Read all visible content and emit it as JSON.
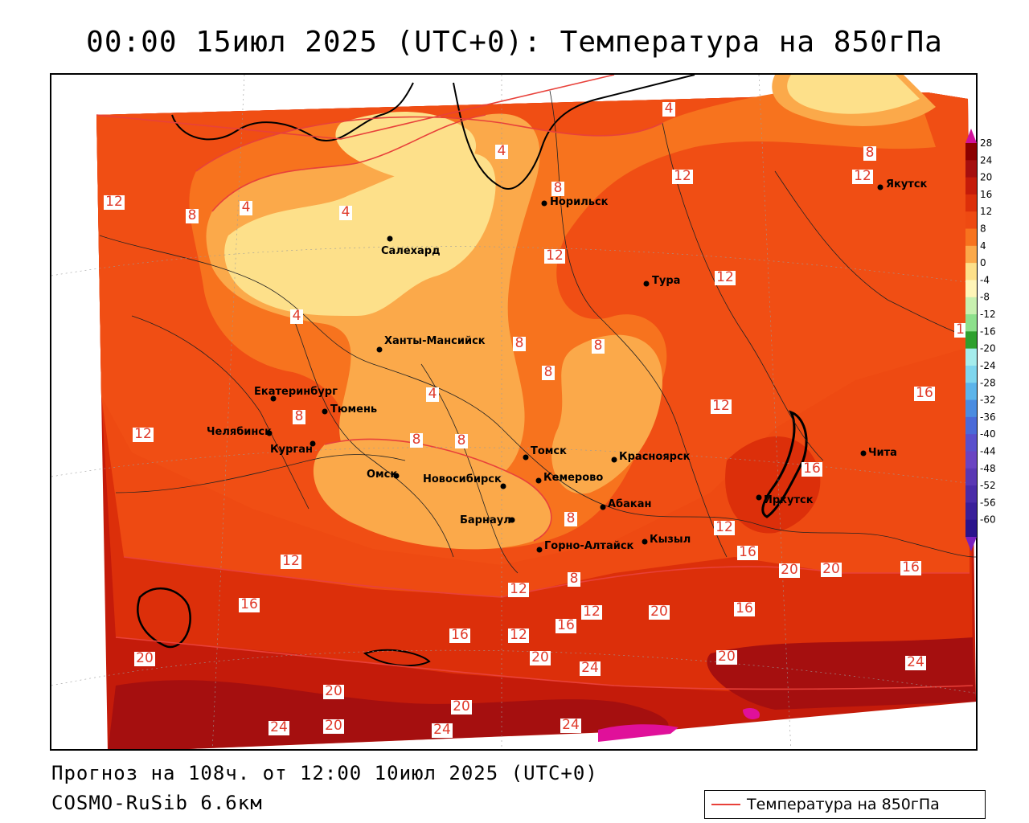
{
  "title": "00:00 15июл 2025 (UTC+0): Температура на 850гПа",
  "footer": {
    "forecast": "Прогноз на 108ч. от 12:00 10июл 2025 (UTC+0)",
    "model": "COSMO-RuSib 6.6км"
  },
  "legend": {
    "label": "Температура на 850гПа",
    "color": "#e8413a"
  },
  "colorbar": {
    "ticks": [
      "28",
      "24",
      "20",
      "16",
      "12",
      "8",
      "4",
      "0",
      "-4",
      "-8",
      "-12",
      "-16",
      "-20",
      "-24",
      "-28",
      "-32",
      "-36",
      "-40",
      "-44",
      "-48",
      "-52",
      "-56",
      "-60"
    ],
    "colors": [
      "#8b0000",
      "#a50f0f",
      "#c41b0a",
      "#dc2f0a",
      "#ee4a12",
      "#f7731e",
      "#fba94a",
      "#fde08a",
      "#fff5b8",
      "#c8f0b0",
      "#8de08c",
      "#2ea02e",
      "#a5ecec",
      "#7fd6ee",
      "#5cb4ea",
      "#4a8ce0",
      "#4a6ad8",
      "#5a50cc",
      "#6a44c2",
      "#5a38b4",
      "#4a2ca8",
      "#3a209a",
      "#2a148c"
    ]
  },
  "cities": [
    {
      "name": "Салехард"
    },
    {
      "name": "Норильск"
    },
    {
      "name": "Якутск"
    },
    {
      "name": "Тура"
    },
    {
      "name": "Ханты-Мансийск"
    },
    {
      "name": "Екатеринбург"
    },
    {
      "name": "Тюмень"
    },
    {
      "name": "Челябинск"
    },
    {
      "name": "Курган"
    },
    {
      "name": "Омск"
    },
    {
      "name": "Новосибирск"
    },
    {
      "name": "Томск"
    },
    {
      "name": "Кемерово"
    },
    {
      "name": "Красноярск"
    },
    {
      "name": "Абакан"
    },
    {
      "name": "Барнаул"
    },
    {
      "name": "Горно-Алтайск"
    },
    {
      "name": "Кызыл"
    },
    {
      "name": "Иркутск"
    },
    {
      "name": "Чита"
    }
  ],
  "contour_labels": [
    "12",
    "8",
    "4",
    "4",
    "4",
    "8",
    "4",
    "8",
    "12",
    "12",
    "4",
    "12",
    "12",
    "12",
    "8",
    "8",
    "8",
    "16",
    "12",
    "8",
    "8",
    "4",
    "8",
    "12",
    "12",
    "8",
    "12",
    "16",
    "16",
    "8",
    "12",
    "16",
    "20",
    "20",
    "16",
    "12",
    "16",
    "16",
    "20",
    "16",
    "12",
    "20",
    "20",
    "24",
    "20",
    "24",
    "20",
    "20",
    "20",
    "24",
    "24",
    "24"
  ]
}
